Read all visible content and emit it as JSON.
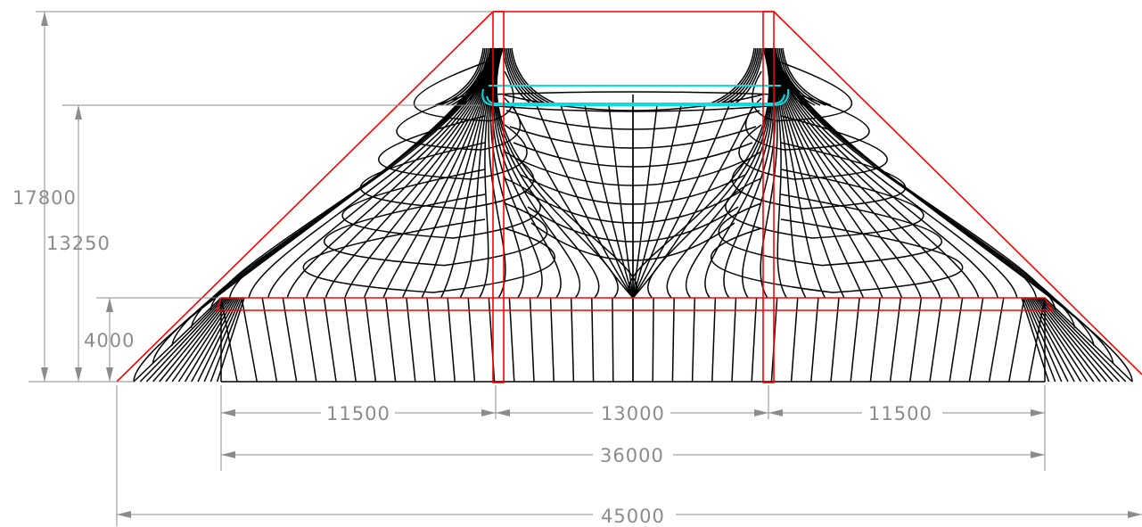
{
  "dimensions": {
    "overall_height": "17800",
    "mast_height": "13250",
    "edge_height": "4000",
    "left_span": "11500",
    "middle_span": "13000",
    "right_span": "11500",
    "base_width": "36000",
    "total_width": "45000"
  },
  "colors": {
    "membrane": "#000000",
    "masts": "#ff0000",
    "ring": "#00e0e8",
    "dimension": "#8c8c8c",
    "background": "#ffffff"
  }
}
